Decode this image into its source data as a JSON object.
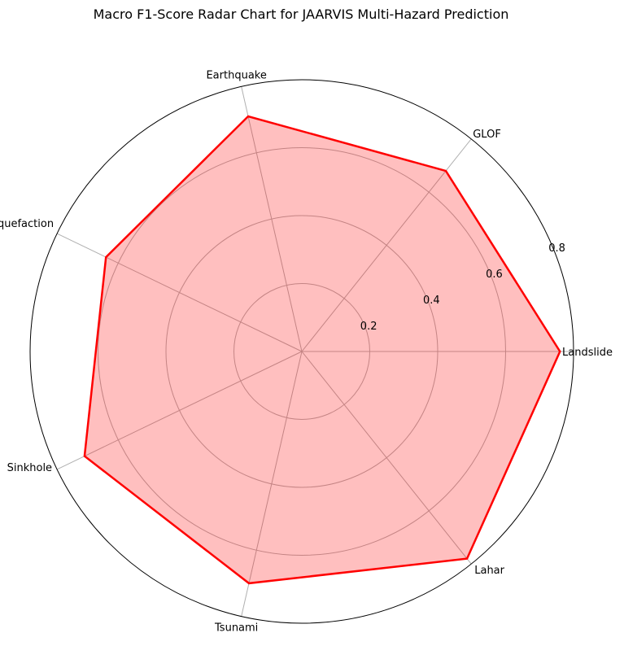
{
  "chart_data": {
    "type": "radar",
    "title": "Macro F1-Score Radar Chart for JAARVIS Multi-Hazard Prediction",
    "categories": [
      "Landslide",
      "GLOF",
      "Earthquake",
      "Liquefaction",
      "Sinkhole",
      "Tsunami",
      "Lahar"
    ],
    "series": [
      {
        "values": [
          0.76,
          0.68,
          0.71,
          0.64,
          0.71,
          0.7,
          0.78
        ]
      }
    ],
    "r_range": [
      0,
      0.8
    ],
    "r_ticks": [
      0.2,
      0.4,
      0.6,
      0.8
    ],
    "r_tick_labels": [
      "0.2",
      "0.4",
      "0.6",
      "0.8"
    ],
    "grid": true,
    "colors": {
      "line": "#ff0000",
      "fill": "#ff0000",
      "grid": "#b0b0b0",
      "frame": "#000000"
    }
  }
}
